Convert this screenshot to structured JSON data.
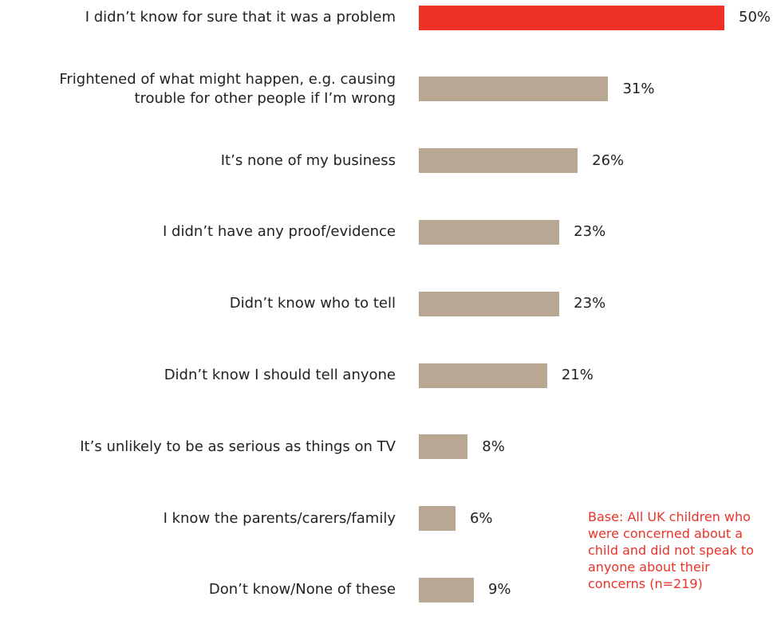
{
  "chart_data": {
    "type": "bar",
    "orientation": "horizontal",
    "categories": [
      "I didn’t know for sure that it was a problem",
      "Frightened of what might happen, e.g. causing\ntrouble for other people if I’m wrong",
      "It’s none of my business",
      "I didn’t have any proof/evidence",
      "Didn’t know who to tell",
      "Didn’t know I should tell anyone",
      "It’s unlikely to be as serious as things on TV",
      "I know the parents/carers/family",
      "Don’t know/None of these"
    ],
    "values": [
      50,
      31,
      26,
      23,
      23,
      21,
      8,
      6,
      9
    ],
    "value_labels": [
      "50%",
      "31%",
      "26%",
      "23%",
      "23%",
      "21%",
      "8%",
      "6%",
      "9%"
    ],
    "unit": "%",
    "xlim": [
      0,
      60
    ],
    "colors": {
      "highlight": "#ee3124",
      "default": "#b8a893"
    },
    "highlight_index": 0,
    "grid": false,
    "legend": "none"
  },
  "note": "Base: All UK children who\nwere concerned about a\nchild and did not speak to\nanyone about their\nconcerns (n=219)"
}
